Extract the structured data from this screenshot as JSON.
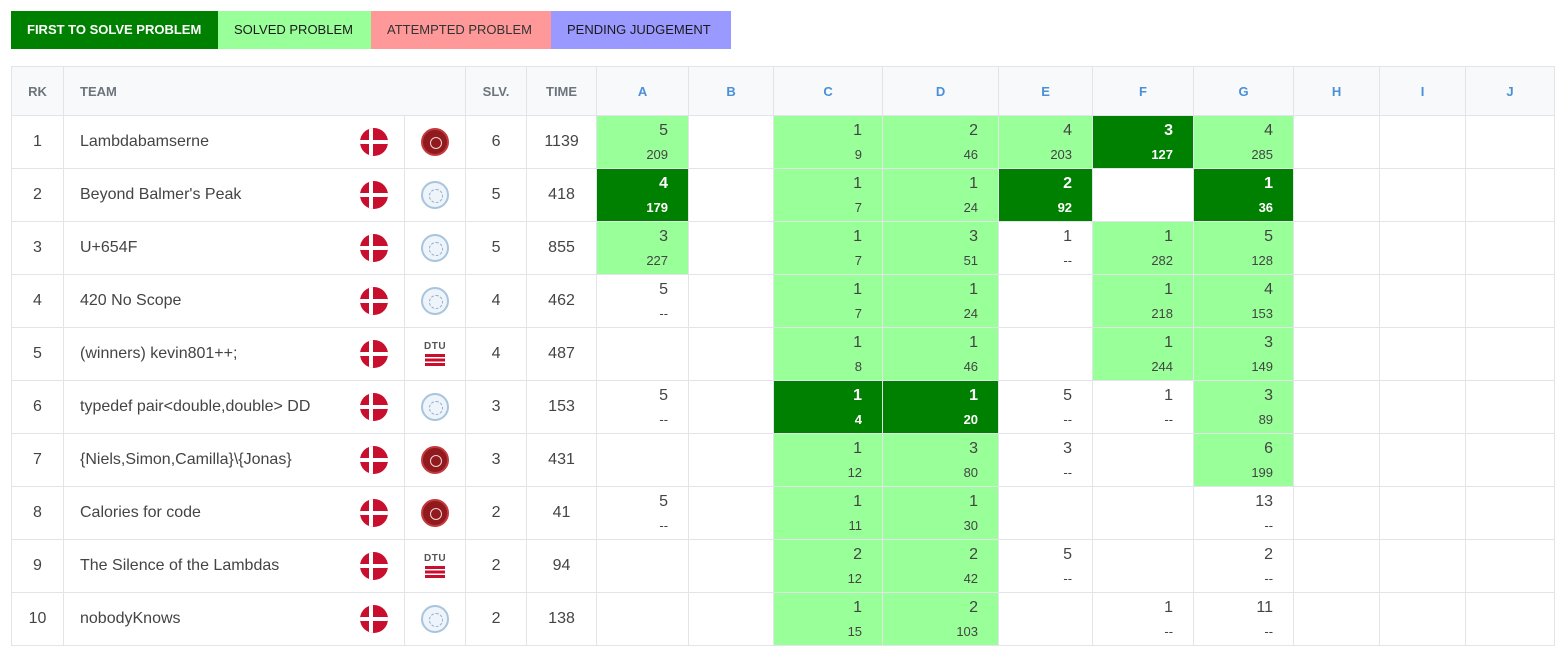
{
  "legend": {
    "first": "FIRST TO SOLVE PROBLEM",
    "solved": "SOLVED PROBLEM",
    "attempted": "ATTEMPTED PROBLEM",
    "pending": "PENDING JUDGEMENT"
  },
  "colors": {
    "first": "#008000",
    "solved": "#99ff99",
    "attempted": "#ff9999",
    "pending": "#9999ff"
  },
  "headers": {
    "rank": "RK",
    "team": "TEAM",
    "solved": "SLV.",
    "time": "TIME",
    "problems": [
      "A",
      "B",
      "C",
      "D",
      "E",
      "F",
      "G",
      "H",
      "I",
      "J"
    ]
  },
  "rows": [
    {
      "rank": "1",
      "team": "Lambdabamserne",
      "country_icon": "denmark-flag-icon",
      "uni_icon": "ku-logo-icon",
      "solved": "6",
      "time": "1139",
      "cells": [
        [
          "solved",
          "5",
          "209"
        ],
        [
          "none",
          "",
          ""
        ],
        [
          "solved",
          "1",
          "9"
        ],
        [
          "solved",
          "2",
          "46"
        ],
        [
          "solved",
          "4",
          "203"
        ],
        [
          "first",
          "3",
          "127"
        ],
        [
          "solved",
          "4",
          "285"
        ],
        [
          "none",
          "",
          ""
        ],
        [
          "none",
          "",
          ""
        ],
        [
          "none",
          "",
          ""
        ]
      ]
    },
    {
      "rank": "2",
      "team": "Beyond Balmer's Peak",
      "country_icon": "denmark-flag-icon",
      "uni_icon": "au-logo-icon",
      "solved": "5",
      "time": "418",
      "cells": [
        [
          "first",
          "4",
          "179"
        ],
        [
          "none",
          "",
          ""
        ],
        [
          "solved",
          "1",
          "7"
        ],
        [
          "solved",
          "1",
          "24"
        ],
        [
          "first",
          "2",
          "92"
        ],
        [
          "none",
          "",
          ""
        ],
        [
          "first",
          "1",
          "36"
        ],
        [
          "none",
          "",
          ""
        ],
        [
          "none",
          "",
          ""
        ],
        [
          "none",
          "",
          ""
        ]
      ]
    },
    {
      "rank": "3",
      "team": "U+654F",
      "country_icon": "denmark-flag-icon",
      "uni_icon": "au-logo-icon",
      "solved": "5",
      "time": "855",
      "cells": [
        [
          "solved",
          "3",
          "227"
        ],
        [
          "none",
          "",
          ""
        ],
        [
          "solved",
          "1",
          "7"
        ],
        [
          "solved",
          "3",
          "51"
        ],
        [
          "attempted",
          "1",
          "--"
        ],
        [
          "solved",
          "1",
          "282"
        ],
        [
          "solved",
          "5",
          "128"
        ],
        [
          "none",
          "",
          ""
        ],
        [
          "none",
          "",
          ""
        ],
        [
          "none",
          "",
          ""
        ]
      ]
    },
    {
      "rank": "4",
      "team": "420 No Scope",
      "country_icon": "denmark-flag-icon",
      "uni_icon": "au-logo-icon",
      "solved": "4",
      "time": "462",
      "cells": [
        [
          "attempted",
          "5",
          "--"
        ],
        [
          "none",
          "",
          ""
        ],
        [
          "solved",
          "1",
          "7"
        ],
        [
          "solved",
          "1",
          "24"
        ],
        [
          "none",
          "",
          ""
        ],
        [
          "solved",
          "1",
          "218"
        ],
        [
          "solved",
          "4",
          "153"
        ],
        [
          "none",
          "",
          ""
        ],
        [
          "none",
          "",
          ""
        ],
        [
          "none",
          "",
          ""
        ]
      ]
    },
    {
      "rank": "5",
      "team": "(winners) kevin801++;",
      "country_icon": "denmark-flag-icon",
      "uni_icon": "dtu-logo-icon",
      "solved": "4",
      "time": "487",
      "cells": [
        [
          "none",
          "",
          ""
        ],
        [
          "none",
          "",
          ""
        ],
        [
          "solved",
          "1",
          "8"
        ],
        [
          "solved",
          "1",
          "46"
        ],
        [
          "none",
          "",
          ""
        ],
        [
          "solved",
          "1",
          "244"
        ],
        [
          "solved",
          "3",
          "149"
        ],
        [
          "none",
          "",
          ""
        ],
        [
          "none",
          "",
          ""
        ],
        [
          "none",
          "",
          ""
        ]
      ]
    },
    {
      "rank": "6",
      "team": "typedef pair<double,double> DD",
      "country_icon": "denmark-flag-icon",
      "uni_icon": "au-logo-icon",
      "solved": "3",
      "time": "153",
      "cells": [
        [
          "attempted",
          "5",
          "--"
        ],
        [
          "none",
          "",
          ""
        ],
        [
          "first",
          "1",
          "4"
        ],
        [
          "first",
          "1",
          "20"
        ],
        [
          "attempted",
          "5",
          "--"
        ],
        [
          "attempted",
          "1",
          "--"
        ],
        [
          "solved",
          "3",
          "89"
        ],
        [
          "none",
          "",
          ""
        ],
        [
          "none",
          "",
          ""
        ],
        [
          "none",
          "",
          ""
        ]
      ]
    },
    {
      "rank": "7",
      "team": "{Niels,Simon,Camilla}\\{Jonas}",
      "country_icon": "denmark-flag-icon",
      "uni_icon": "ku-logo-icon",
      "solved": "3",
      "time": "431",
      "cells": [
        [
          "none",
          "",
          ""
        ],
        [
          "none",
          "",
          ""
        ],
        [
          "solved",
          "1",
          "12"
        ],
        [
          "solved",
          "3",
          "80"
        ],
        [
          "attempted",
          "3",
          "--"
        ],
        [
          "none",
          "",
          ""
        ],
        [
          "solved",
          "6",
          "199"
        ],
        [
          "none",
          "",
          ""
        ],
        [
          "none",
          "",
          ""
        ],
        [
          "none",
          "",
          ""
        ]
      ]
    },
    {
      "rank": "8",
      "team": "Calories for code",
      "country_icon": "denmark-flag-icon",
      "uni_icon": "ku-logo-icon",
      "solved": "2",
      "time": "41",
      "cells": [
        [
          "attempted",
          "5",
          "--"
        ],
        [
          "none",
          "",
          ""
        ],
        [
          "solved",
          "1",
          "11"
        ],
        [
          "solved",
          "1",
          "30"
        ],
        [
          "none",
          "",
          ""
        ],
        [
          "none",
          "",
          ""
        ],
        [
          "attempted",
          "13",
          "--"
        ],
        [
          "none",
          "",
          ""
        ],
        [
          "none",
          "",
          ""
        ],
        [
          "none",
          "",
          ""
        ]
      ]
    },
    {
      "rank": "9",
      "team": "The Silence of the Lambdas",
      "country_icon": "denmark-flag-icon",
      "uni_icon": "dtu-logo-icon",
      "solved": "2",
      "time": "94",
      "cells": [
        [
          "none",
          "",
          ""
        ],
        [
          "none",
          "",
          ""
        ],
        [
          "solved",
          "2",
          "12"
        ],
        [
          "solved",
          "2",
          "42"
        ],
        [
          "attempted",
          "5",
          "--"
        ],
        [
          "none",
          "",
          ""
        ],
        [
          "attempted",
          "2",
          "--"
        ],
        [
          "none",
          "",
          ""
        ],
        [
          "none",
          "",
          ""
        ],
        [
          "none",
          "",
          ""
        ]
      ]
    },
    {
      "rank": "10",
      "team": "nobodyKnows",
      "country_icon": "denmark-flag-icon",
      "uni_icon": "au-logo-icon",
      "solved": "2",
      "time": "138",
      "cells": [
        [
          "none",
          "",
          ""
        ],
        [
          "none",
          "",
          ""
        ],
        [
          "solved",
          "1",
          "15"
        ],
        [
          "solved",
          "2",
          "103"
        ],
        [
          "none",
          "",
          ""
        ],
        [
          "attempted",
          "1",
          "--"
        ],
        [
          "attempted",
          "11",
          "--"
        ],
        [
          "none",
          "",
          ""
        ],
        [
          "none",
          "",
          ""
        ],
        [
          "none",
          "",
          ""
        ]
      ]
    }
  ],
  "dtu_text": "DTU"
}
